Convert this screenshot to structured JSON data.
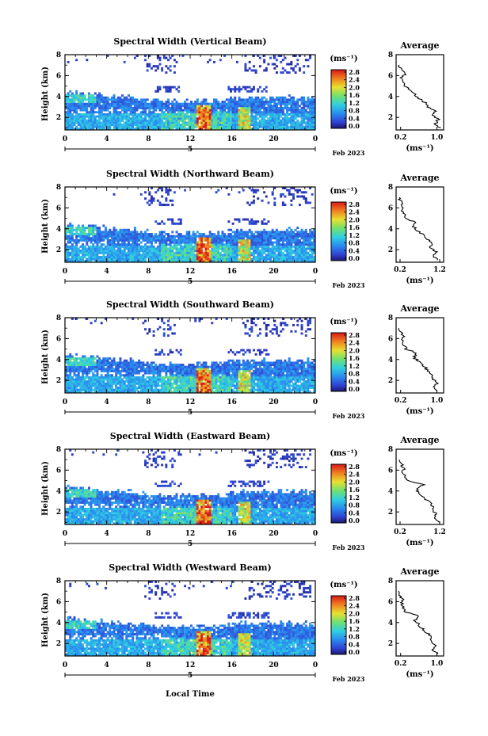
{
  "figure": {
    "x_axis_label": "Local Time",
    "date_label": "Feb 2023",
    "day_label": "5",
    "height_label": "Height (km)",
    "unit_label": "(ms⁻¹)",
    "average_title": "Average",
    "average_unit": "(ms⁻¹)",
    "colorbar_ticks": [
      "2.8",
      "2.4",
      "2.0",
      "1.6",
      "1.2",
      "0.8",
      "0.4",
      "0.0"
    ]
  },
  "chart_data": [
    {
      "type": "heatmap",
      "title": "Spectral Width (Vertical Beam)",
      "xlabel": "Local Time",
      "ylabel": "Height (km)",
      "xlim": [
        0,
        24
      ],
      "x_ticks": [
        "0",
        "4",
        "8",
        "12",
        "16",
        "20",
        "0"
      ],
      "ylim": [
        0.8,
        8
      ],
      "y_ticks": [
        "2",
        "4",
        "6",
        "8"
      ],
      "colorbar": {
        "label": "(ms⁻¹)",
        "range": [
          0.0,
          2.8
        ]
      },
      "average_profile": {
        "title": "Average",
        "xlabel": "(ms⁻¹)",
        "x_ticks": [
          "0.2",
          "1.0"
        ],
        "xlim": [
          0.1,
          1.15
        ],
        "y_ticks": [
          "2",
          "4",
          "6",
          "8"
        ],
        "height": [
          1.0,
          1.4,
          1.8,
          2.2,
          2.6,
          3.0,
          3.4,
          3.8,
          4.2,
          4.6,
          5.0,
          5.4,
          5.8,
          6.2,
          6.6,
          7.0
        ],
        "value": [
          1.05,
          0.98,
          1.02,
          0.92,
          0.95,
          0.82,
          0.74,
          0.62,
          0.5,
          0.42,
          0.28,
          0.26,
          0.22,
          0.3,
          0.2,
          0.17
        ]
      }
    },
    {
      "type": "heatmap",
      "title": "Spectral Width (Northward Beam)",
      "xlabel": "Local Time",
      "ylabel": "Height (km)",
      "xlim": [
        0,
        24
      ],
      "x_ticks": [
        "0",
        "4",
        "8",
        "12",
        "16",
        "20",
        "0"
      ],
      "ylim": [
        0.8,
        8
      ],
      "y_ticks": [
        "2",
        "4",
        "6",
        "8"
      ],
      "colorbar": {
        "label": "(ms⁻¹)",
        "range": [
          0.0,
          2.8
        ]
      },
      "average_profile": {
        "title": "Average",
        "xlabel": "(ms⁻¹)",
        "x_ticks": [
          "0.2",
          "1.2"
        ],
        "xlim": [
          0.1,
          1.3
        ],
        "y_ticks": [
          "2",
          "4",
          "6",
          "8"
        ],
        "height": [
          1.0,
          1.4,
          1.8,
          2.2,
          2.6,
          3.0,
          3.4,
          3.8,
          4.2,
          4.6,
          5.0,
          5.4,
          5.8,
          6.2,
          6.6,
          7.0
        ],
        "value": [
          1.15,
          1.05,
          1.1,
          0.95,
          1.0,
          0.9,
          0.78,
          0.65,
          0.55,
          0.6,
          0.35,
          0.3,
          0.25,
          0.28,
          0.22,
          0.18
        ]
      }
    },
    {
      "type": "heatmap",
      "title": "Spectral Width (Southward Beam)",
      "xlabel": "Local Time",
      "ylabel": "Height (km)",
      "xlim": [
        0,
        24
      ],
      "x_ticks": [
        "0",
        "4",
        "8",
        "12",
        "16",
        "20",
        "0"
      ],
      "ylim": [
        0.8,
        8
      ],
      "y_ticks": [
        "2",
        "4",
        "6",
        "8"
      ],
      "colorbar": {
        "label": "(ms⁻¹)",
        "range": [
          0.0,
          2.8
        ]
      },
      "average_profile": {
        "title": "Average",
        "xlabel": "(ms⁻¹)",
        "x_ticks": [
          "0.2",
          "1.0"
        ],
        "xlim": [
          0.1,
          1.15
        ],
        "y_ticks": [
          "2",
          "4",
          "6",
          "8"
        ],
        "height": [
          1.0,
          1.4,
          1.8,
          2.2,
          2.6,
          3.0,
          3.4,
          3.8,
          4.2,
          4.6,
          5.0,
          5.4,
          5.8,
          6.2,
          6.6,
          7.0
        ],
        "value": [
          1.02,
          0.95,
          1.0,
          0.88,
          0.9,
          0.8,
          0.7,
          0.6,
          0.5,
          0.56,
          0.32,
          0.28,
          0.24,
          0.26,
          0.2,
          0.16
        ]
      }
    },
    {
      "type": "heatmap",
      "title": "Spectral Width (Eastward Beam)",
      "xlabel": "Local Time",
      "ylabel": "Height (km)",
      "xlim": [
        0,
        24
      ],
      "x_ticks": [
        "0",
        "4",
        "8",
        "12",
        "16",
        "20",
        "0"
      ],
      "ylim": [
        0.8,
        8
      ],
      "y_ticks": [
        "2",
        "4",
        "6",
        "8"
      ],
      "colorbar": {
        "label": "(ms⁻¹)",
        "range": [
          0.0,
          2.8
        ]
      },
      "average_profile": {
        "title": "Average",
        "xlabel": "(ms⁻¹)",
        "x_ticks": [
          "0.2",
          "1.2"
        ],
        "xlim": [
          0.1,
          1.3
        ],
        "y_ticks": [
          "2",
          "4",
          "6",
          "8"
        ],
        "height": [
          1.0,
          1.4,
          1.8,
          2.2,
          2.6,
          3.0,
          3.4,
          3.8,
          4.2,
          4.6,
          5.0,
          5.4,
          5.8,
          6.2,
          6.6,
          7.0
        ],
        "value": [
          1.18,
          1.08,
          1.12,
          1.0,
          1.02,
          0.92,
          0.8,
          0.7,
          0.6,
          0.8,
          0.4,
          0.32,
          0.26,
          0.3,
          0.22,
          0.18
        ]
      }
    },
    {
      "type": "heatmap",
      "title": "Spectral Width (Westward Beam)",
      "xlabel": "Local Time",
      "ylabel": "Height (km)",
      "xlim": [
        0,
        24
      ],
      "x_ticks": [
        "0",
        "4",
        "8",
        "12",
        "16",
        "20",
        "0"
      ],
      "ylim": [
        0.8,
        8
      ],
      "y_ticks": [
        "2",
        "4",
        "6",
        "8"
      ],
      "colorbar": {
        "label": "(ms⁻¹)",
        "range": [
          0.0,
          2.8
        ]
      },
      "average_profile": {
        "title": "Average",
        "xlabel": "(ms⁻¹)",
        "x_ticks": [
          "0.2",
          "1.0"
        ],
        "xlim": [
          0.1,
          1.15
        ],
        "y_ticks": [
          "2",
          "4",
          "6",
          "8"
        ],
        "height": [
          1.0,
          1.4,
          1.8,
          2.2,
          2.6,
          3.0,
          3.4,
          3.8,
          4.2,
          4.6,
          5.0,
          5.4,
          5.8,
          6.2,
          6.6,
          7.0
        ],
        "value": [
          1.0,
          0.92,
          0.98,
          0.86,
          0.9,
          0.78,
          0.7,
          0.6,
          0.5,
          0.62,
          0.3,
          0.27,
          0.22,
          0.25,
          0.19,
          0.15
        ]
      }
    }
  ]
}
